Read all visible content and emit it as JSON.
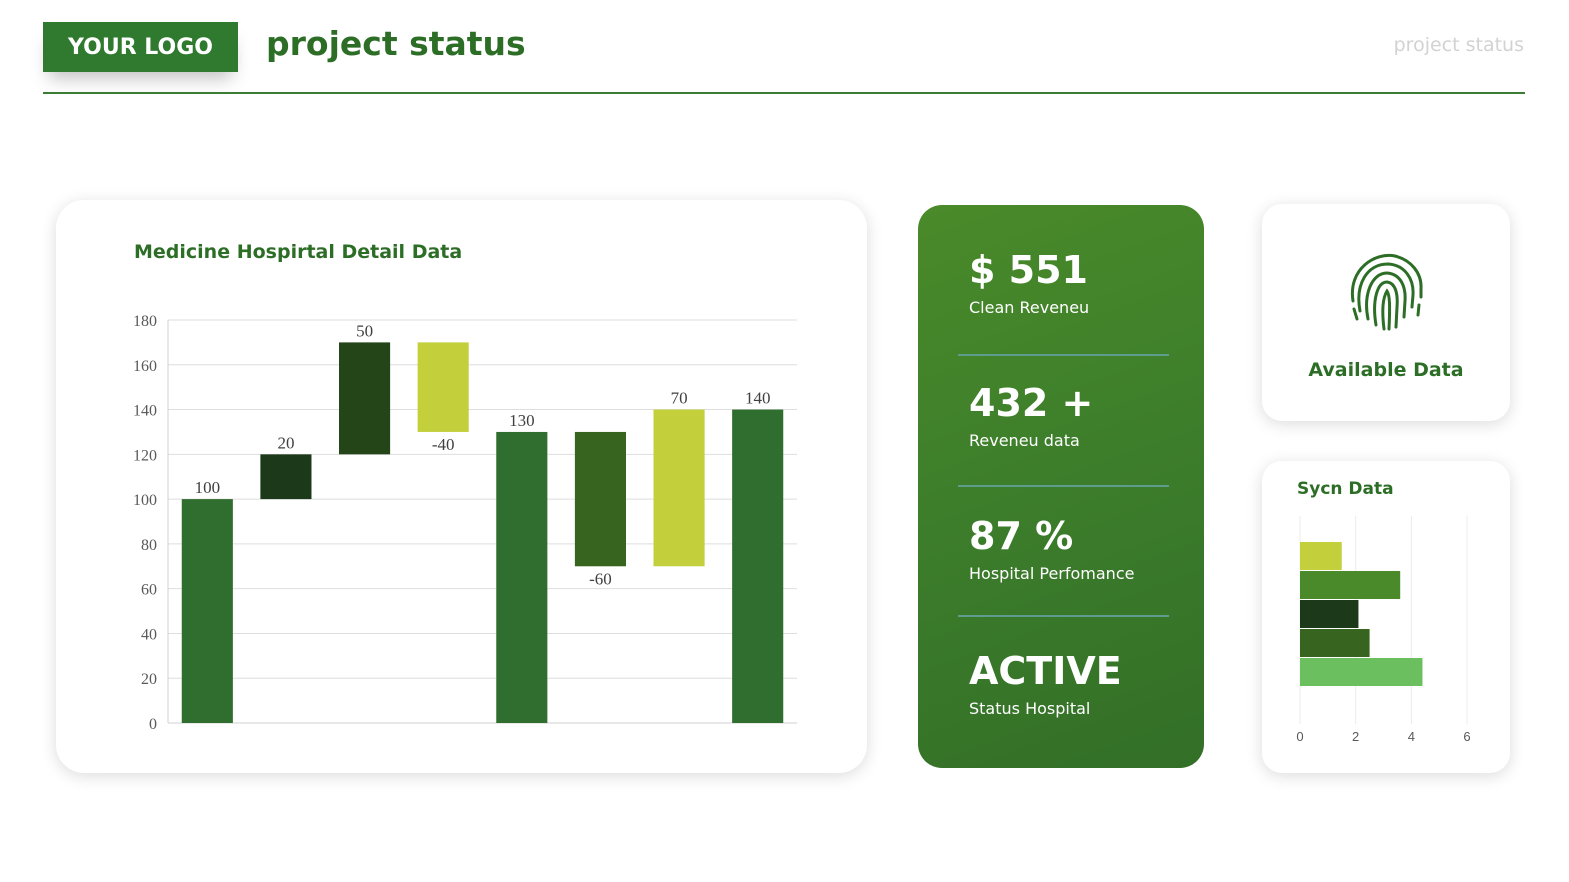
{
  "header": {
    "logo": "YOUR LOGO",
    "title": "project status",
    "corner_title": "project status"
  },
  "colors": {
    "brand_green": "#2d6e27",
    "bar_green": "#2f6e2f",
    "bar_dark": "#1c3a1a",
    "bar_darker": "#234518",
    "bar_olive": "#37641e",
    "bar_lime": "#c3cf3b"
  },
  "stats": [
    {
      "value": "$ 551",
      "label": "Clean Reveneu"
    },
    {
      "value": "432 +",
      "label": "Reveneu data"
    },
    {
      "value": "87 %",
      "label": "Hospital Perfomance"
    },
    {
      "value": "ACTIVE",
      "label": "Status Hospital"
    }
  ],
  "fingerprint": {
    "icon": "fingerprint-icon",
    "label": "Available Data"
  },
  "chart_data": [
    {
      "type": "bar",
      "subtype": "waterfall",
      "title": "Medicine Hospirtal Detail Data",
      "ylim": [
        0,
        180
      ],
      "yticks": [
        0,
        20,
        40,
        60,
        80,
        100,
        120,
        140,
        160,
        180
      ],
      "grid": true,
      "bars": [
        {
          "label": "100",
          "bottom": 0,
          "top": 100,
          "color": "#2f6e2f",
          "label_pos": "top"
        },
        {
          "label": "20",
          "bottom": 100,
          "top": 120,
          "color": "#1c3a1a",
          "label_pos": "top"
        },
        {
          "label": "50",
          "bottom": 120,
          "top": 170,
          "color": "#234518",
          "label_pos": "top"
        },
        {
          "label": "-40",
          "bottom": 130,
          "top": 170,
          "color": "#c3cf3b",
          "label_pos": "bottom"
        },
        {
          "label": "130",
          "bottom": 0,
          "top": 130,
          "color": "#2f6e2f",
          "label_pos": "top"
        },
        {
          "label": "-60",
          "bottom": 70,
          "top": 130,
          "color": "#37641e",
          "label_pos": "bottom"
        },
        {
          "label": "70",
          "bottom": 70,
          "top": 140,
          "color": "#c3cf3b",
          "label_pos": "top"
        },
        {
          "label": "140",
          "bottom": 0,
          "top": 140,
          "color": "#2f6e2f",
          "label_pos": "top"
        }
      ]
    },
    {
      "type": "bar",
      "orientation": "horizontal",
      "title": "Sycn Data",
      "xlim": [
        0,
        6
      ],
      "xticks": [
        0,
        2,
        4,
        6
      ],
      "grid": true,
      "values": [
        1.5,
        3.6,
        2.1,
        2.5,
        4.4
      ],
      "colors": [
        "#c3cf3b",
        "#4a8a2a",
        "#1c3a1a",
        "#37641e",
        "#6cbf5f"
      ]
    }
  ]
}
